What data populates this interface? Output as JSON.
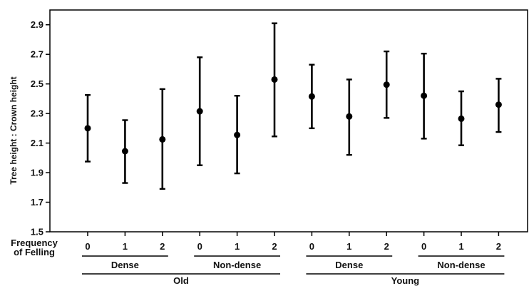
{
  "chart_data": {
    "type": "scatter",
    "title": "",
    "ylabel": "Tree height : Crown height",
    "xlabel_lines": [
      "Frequency",
      "of Felling"
    ],
    "ylim": [
      1.5,
      3.0
    ],
    "yticks": [
      "1.5",
      "1.7",
      "1.9",
      "2.1",
      "2.3",
      "2.5",
      "2.7",
      "2.9"
    ],
    "grid": false,
    "error_bars": true,
    "categories": [
      "0",
      "1",
      "2",
      "0",
      "1",
      "2",
      "0",
      "1",
      "2",
      "0",
      "1",
      "2"
    ],
    "values": [
      2.2,
      2.045,
      2.125,
      2.315,
      2.155,
      2.53,
      2.415,
      2.28,
      2.495,
      2.42,
      2.265,
      2.36
    ],
    "lower": [
      1.975,
      1.83,
      1.79,
      1.95,
      1.895,
      2.145,
      2.2,
      2.02,
      2.27,
      2.13,
      2.085,
      2.175
    ],
    "upper": [
      2.425,
      2.255,
      2.465,
      2.68,
      2.42,
      2.91,
      2.63,
      2.53,
      2.72,
      2.705,
      2.45,
      2.535
    ],
    "density_groups": [
      "Dense",
      "Non-dense",
      "Dense",
      "Non-dense"
    ],
    "age_groups": [
      "Old",
      "Young"
    ]
  }
}
